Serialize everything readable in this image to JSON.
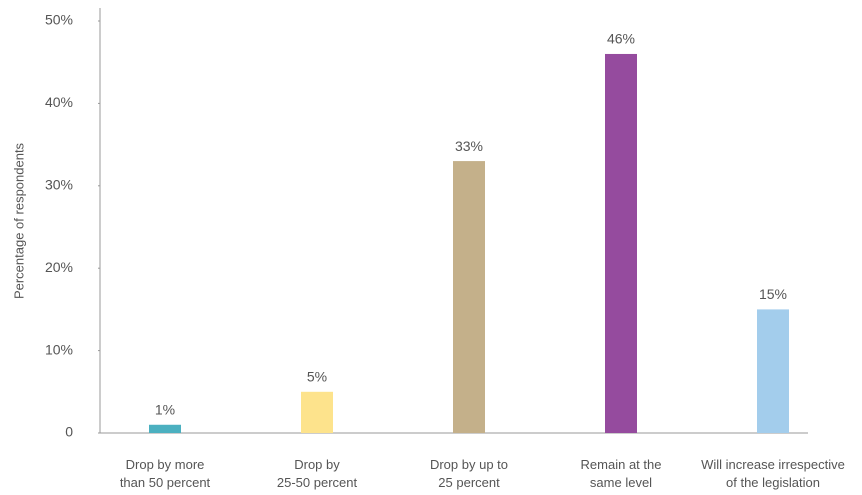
{
  "chart_data": {
    "type": "bar",
    "y_label": "Percentage of respondents",
    "categories": [
      "Drop by more\nthan 50 percent",
      "Drop by\n25-50 percent",
      "Drop by up to\n25 percent",
      "Remain at the\nsame level",
      "Will increase irrespective\nof the legislation"
    ],
    "values": [
      1,
      5,
      33,
      46,
      15
    ],
    "value_labels": [
      "1%",
      "5%",
      "33%",
      "46%",
      "15%"
    ],
    "colors": [
      "#4bb0c0",
      "#fde38c",
      "#c4b08a",
      "#954b9e",
      "#a3cdec"
    ],
    "ylim": [
      0,
      50
    ],
    "yticks": [
      0,
      {
        "value": 10,
        "label": "10%"
      },
      {
        "value": 20,
        "label": "20%"
      },
      {
        "value": 30,
        "label": "30%"
      },
      {
        "value": 40,
        "label": "40%"
      },
      {
        "value": 50,
        "label": "50%"
      }
    ],
    "grid": false
  }
}
